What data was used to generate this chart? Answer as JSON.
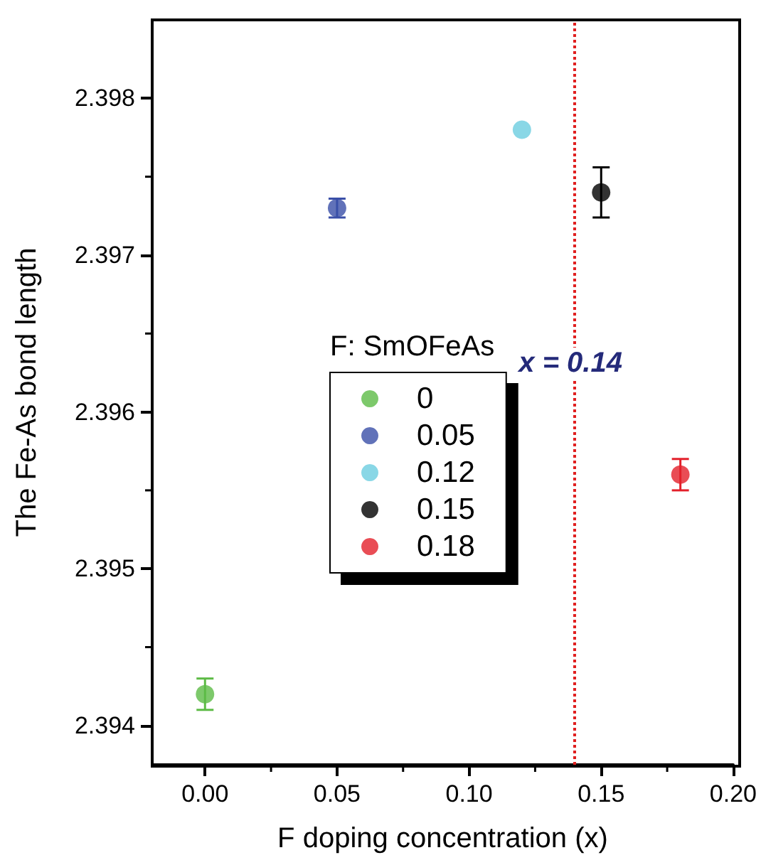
{
  "chart_data": {
    "type": "scatter",
    "xlabel": "F doping concentration (x)",
    "ylabel": "The Fe-As bond length",
    "legend_title": "F: SmOFeAs",
    "xlim": [
      -0.02,
      0.2
    ],
    "xticks": [
      {
        "value": 0,
        "label": "0.00"
      },
      0.05,
      {
        "value": 0.1,
        "label": "0.10"
      },
      0.15,
      {
        "value": 0.2,
        "label": "0.20"
      }
    ],
    "ylim": [
      2.39375,
      2.3985
    ],
    "yticks": [
      2.394,
      2.395,
      2.396,
      2.397,
      2.398
    ],
    "series": [
      {
        "name": "0",
        "color": "#5dbb46",
        "x": [
          0
        ],
        "values": [
          2.3942
        ],
        "errors": [
          0.0001
        ]
      },
      {
        "name": "0.05",
        "color": "#3a4fa8",
        "x": [
          0.05
        ],
        "values": [
          2.3973
        ],
        "errors": [
          6e-05
        ]
      },
      {
        "name": "0.12",
        "color": "#6ccde0",
        "x": [
          0.12
        ],
        "values": [
          2.3978
        ],
        "errors": [
          null
        ]
      },
      {
        "name": "0.15",
        "color": "#000000",
        "x": [
          0.15
        ],
        "values": [
          2.3974
        ],
        "errors": [
          0.00016
        ]
      },
      {
        "name": "0.18",
        "color": "#e3202a",
        "x": [
          0.18
        ],
        "values": [
          2.3956
        ],
        "errors": [
          0.0001
        ]
      }
    ],
    "ref_lines": [
      {
        "axis": "x",
        "value": 0.14,
        "label": "x = 0.14",
        "color": "#e02020",
        "line_style": "dotted"
      }
    ],
    "marker": "circle",
    "grid": false,
    "legend": "center"
  }
}
